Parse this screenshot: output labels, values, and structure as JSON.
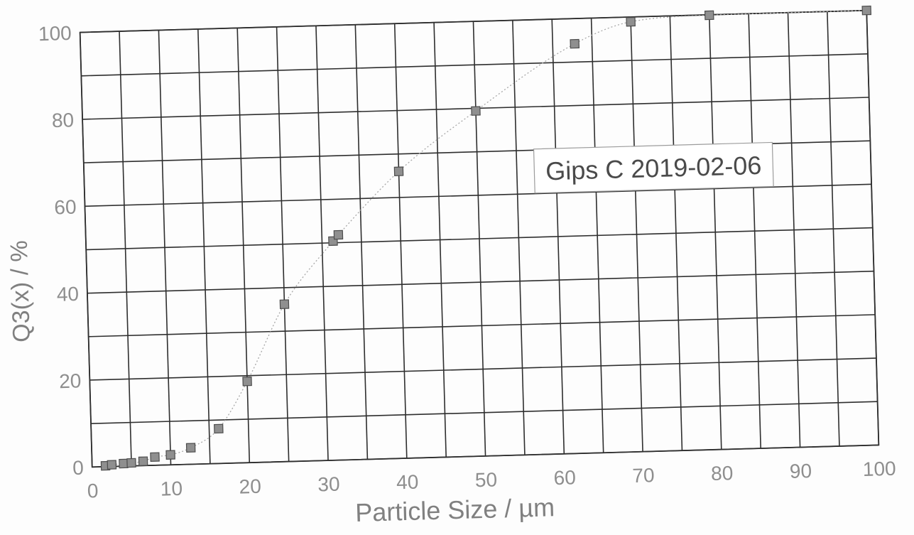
{
  "chart_data": {
    "type": "scatter",
    "xlabel": "Particle Size / µm",
    "ylabel": "Q3(x) / %",
    "xlim": [
      0,
      100
    ],
    "ylim": [
      0,
      100
    ],
    "xticks": [
      0,
      10,
      20,
      30,
      40,
      50,
      60,
      70,
      80,
      90,
      100
    ],
    "yticks": [
      0,
      20,
      40,
      60,
      80,
      100
    ],
    "grid": true,
    "grid_x_step": 5,
    "grid_y_step": 10,
    "legend": false,
    "series": [
      {
        "marker": "square",
        "line": "dotted",
        "x": [
          1.7,
          2.5,
          4,
          5,
          6.5,
          8,
          10,
          12.6,
          16.2,
          20,
          25,
          31.4,
          32.1,
          40,
          50,
          62.8,
          70,
          80,
          100
        ],
        "y": [
          0.2,
          0.4,
          0.6,
          0.7,
          1.0,
          1.9,
          2.3,
          3.8,
          8.0,
          18.7,
          36.2,
          50.4,
          51.8,
          66.0,
          79.4,
          94.2,
          98.9,
          99.9,
          100
        ]
      }
    ],
    "annotations": [
      {
        "text": "Gips C 2019-02-06",
        "boxed": true
      }
    ],
    "colors": {
      "background": "#fdfdfd",
      "grid": "#2e2e2e",
      "tick_label": "#8e8e8e",
      "axis_title": "#808080",
      "marker_fill": "#8f8f8f",
      "marker_edge": "#4d4d4d",
      "curve": "#a8a8a8",
      "annotation_text": "#4a4a4a",
      "annotation_border": "#9c9c9c",
      "annotation_fill": "#ffffff"
    }
  }
}
